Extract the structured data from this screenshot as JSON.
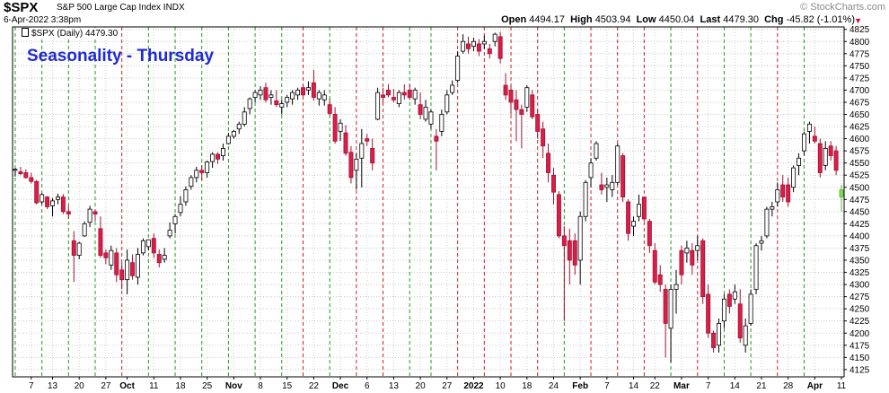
{
  "header": {
    "ticker": "$SPX",
    "ticker_desc": "S&P 500 Large Cap Index  INDX",
    "datetime": "6-Apr-2022 3:38pm",
    "brand": "© StockCharts.com",
    "open_label": "Open",
    "open": "4494.17",
    "high_label": "High",
    "high": "4503.94",
    "low_label": "Low",
    "low": "4450.04",
    "last_label": "Last",
    "last": "4479.30",
    "chg_label": "Chg",
    "chg": "-45.82 (-1.01%)"
  },
  "legend_label": "$SPX (Daily) 4479.30",
  "chart_data": {
    "type": "candlestick",
    "title": "Seasonality - Thursday",
    "ylim": [
      4110,
      4830
    ],
    "y_ticks": [
      4125,
      4150,
      4175,
      4200,
      4225,
      4250,
      4275,
      4300,
      4325,
      4350,
      4375,
      4400,
      4425,
      4450,
      4475,
      4500,
      4525,
      4550,
      4575,
      4600,
      4625,
      4650,
      4675,
      4700,
      4725,
      4750,
      4775,
      4800,
      4825
    ],
    "x_tick_labels": [
      "7",
      "13",
      "20",
      "27",
      "Oct",
      "11",
      "18",
      "25",
      "Nov",
      "8",
      "15",
      "22",
      "Dec",
      "6",
      "13",
      "20",
      "27",
      "2022",
      "10",
      "18",
      "24",
      "Feb",
      "7",
      "14",
      "22",
      "Mar",
      "7",
      "14",
      "21",
      "28",
      "Apr",
      "11"
    ],
    "x_tick_index": [
      3,
      7,
      12,
      17,
      21,
      26,
      31,
      36,
      41,
      46,
      51,
      56,
      61,
      66,
      71,
      76,
      81,
      86,
      91,
      96,
      101,
      106,
      111,
      116,
      120,
      125,
      130,
      135,
      140,
      145,
      150,
      155
    ],
    "bold_tick_labels": [
      "Oct",
      "Nov",
      "Dec",
      "2022",
      "Feb",
      "Mar",
      "Apr"
    ],
    "start_date": "2021-09-03",
    "thursday_lines": [
      {
        "day": 0,
        "color": "green"
      },
      {
        "day": 5,
        "color": "green"
      },
      {
        "day": 10,
        "color": "green"
      },
      {
        "day": 15,
        "color": "green"
      },
      {
        "day": 20,
        "color": "red"
      },
      {
        "day": 25,
        "color": "green"
      },
      {
        "day": 30,
        "color": "green"
      },
      {
        "day": 35,
        "color": "green"
      },
      {
        "day": 40,
        "color": "green"
      },
      {
        "day": 45,
        "color": "green"
      },
      {
        "day": 50,
        "color": "green"
      },
      {
        "day": 54,
        "color": "red"
      },
      {
        "day": 59,
        "color": "green"
      },
      {
        "day": 64,
        "color": "red"
      },
      {
        "day": 69,
        "color": "red"
      },
      {
        "day": 74,
        "color": "green"
      },
      {
        "day": 78,
        "color": "green"
      },
      {
        "day": 83,
        "color": "red"
      },
      {
        "day": 88,
        "color": "red"
      },
      {
        "day": 93,
        "color": "red"
      },
      {
        "day": 98,
        "color": "red"
      },
      {
        "day": 103,
        "color": "green"
      },
      {
        "day": 108,
        "color": "red"
      },
      {
        "day": 113,
        "color": "red"
      },
      {
        "day": 118,
        "color": "red"
      },
      {
        "day": 123,
        "color": "green"
      },
      {
        "day": 128,
        "color": "red"
      },
      {
        "day": 133,
        "color": "green"
      },
      {
        "day": 138,
        "color": "green"
      },
      {
        "day": 143,
        "color": "red"
      },
      {
        "day": 148,
        "color": "green"
      }
    ],
    "candles": [
      [
        4535,
        4540,
        4522,
        4537
      ],
      [
        4532,
        4542,
        4525,
        4528
      ],
      [
        4530,
        4537,
        4518,
        4520
      ],
      [
        4520,
        4530,
        4508,
        4512
      ],
      [
        4512,
        4515,
        4465,
        4468
      ],
      [
        4470,
        4488,
        4465,
        4485
      ],
      [
        4480,
        4482,
        4455,
        4460
      ],
      [
        4462,
        4478,
        4440,
        4472
      ],
      [
        4475,
        4487,
        4465,
        4480
      ],
      [
        4480,
        4486,
        4445,
        4450
      ],
      [
        4450,
        4462,
        4435,
        4445
      ],
      [
        4390,
        4410,
        4305,
        4360
      ],
      [
        4360,
        4388,
        4352,
        4385
      ],
      [
        4400,
        4430,
        4398,
        4425
      ],
      [
        4428,
        4462,
        4418,
        4455
      ],
      [
        4450,
        4455,
        4430,
        4445
      ],
      [
        4415,
        4440,
        4355,
        4360
      ],
      [
        4365,
        4372,
        4342,
        4355
      ],
      [
        4340,
        4380,
        4330,
        4370
      ],
      [
        4365,
        4375,
        4305,
        4320
      ],
      [
        4330,
        4345,
        4290,
        4310
      ],
      [
        4310,
        4372,
        4280,
        4350
      ],
      [
        4345,
        4362,
        4310,
        4318
      ],
      [
        4315,
        4375,
        4300,
        4362
      ],
      [
        4365,
        4395,
        4360,
        4390
      ],
      [
        4378,
        4393,
        4370,
        4392
      ],
      [
        4395,
        4405,
        4355,
        4365
      ],
      [
        4362,
        4372,
        4335,
        4345
      ],
      [
        4352,
        4375,
        4345,
        4360
      ],
      [
        4400,
        4428,
        4395,
        4412
      ],
      [
        4425,
        4445,
        4405,
        4440
      ],
      [
        4448,
        4482,
        4440,
        4465
      ],
      [
        4470,
        4502,
        4462,
        4495
      ],
      [
        4502,
        4525,
        4495,
        4520
      ],
      [
        4520,
        4542,
        4510,
        4535
      ],
      [
        4535,
        4545,
        4515,
        4530
      ],
      [
        4530,
        4555,
        4520,
        4552
      ],
      [
        4553,
        4572,
        4540,
        4568
      ],
      [
        4568,
        4572,
        4548,
        4558
      ],
      [
        4565,
        4590,
        4555,
        4580
      ],
      [
        4590,
        4612,
        4588,
        4605
      ],
      [
        4605,
        4618,
        4600,
        4615
      ],
      [
        4620,
        4635,
        4610,
        4630
      ],
      [
        4630,
        4665,
        4625,
        4655
      ],
      [
        4662,
        4685,
        4650,
        4682
      ],
      [
        4685,
        4700,
        4675,
        4695
      ],
      [
        4690,
        4708,
        4680,
        4700
      ],
      [
        4705,
        4715,
        4675,
        4680
      ],
      [
        4685,
        4700,
        4670,
        4690
      ],
      [
        4678,
        4700,
        4665,
        4670
      ],
      [
        4665,
        4680,
        4650,
        4672
      ],
      [
        4675,
        4690,
        4665,
        4685
      ],
      [
        4682,
        4700,
        4670,
        4695
      ],
      [
        4690,
        4705,
        4680,
        4700
      ],
      [
        4705,
        4712,
        4688,
        4690
      ],
      [
        4700,
        4718,
        4690,
        4705
      ],
      [
        4715,
        4742,
        4678,
        4685
      ],
      [
        4682,
        4700,
        4668,
        4695
      ],
      [
        4680,
        4700,
        4668,
        4690
      ],
      [
        4670,
        4682,
        4648,
        4652
      ],
      [
        4650,
        4665,
        4590,
        4595
      ],
      [
        4615,
        4640,
        4595,
        4632
      ],
      [
        4612,
        4628,
        4565,
        4570
      ],
      [
        4572,
        4585,
        4508,
        4520
      ],
      [
        4535,
        4570,
        4495,
        4558
      ],
      [
        4560,
        4620,
        4500,
        4590
      ],
      [
        4600,
        4610,
        4585,
        4595
      ],
      [
        4580,
        4600,
        4535,
        4550
      ],
      [
        4640,
        4705,
        4638,
        4695
      ],
      [
        4690,
        4705,
        4675,
        4685
      ],
      [
        4700,
        4712,
        4685,
        4690
      ],
      [
        4685,
        4702,
        4675,
        4680
      ],
      [
        4672,
        4700,
        4665,
        4695
      ],
      [
        4695,
        4712,
        4680,
        4690
      ],
      [
        4700,
        4712,
        4680,
        4685
      ],
      [
        4682,
        4705,
        4670,
        4700
      ],
      [
        4670,
        4695,
        4640,
        4650
      ],
      [
        4640,
        4680,
        4635,
        4665
      ],
      [
        4630,
        4660,
        4620,
        4655
      ],
      [
        4605,
        4620,
        4535,
        4595
      ],
      [
        4615,
        4660,
        4605,
        4650
      ],
      [
        4655,
        4700,
        4650,
        4690
      ],
      [
        4695,
        4720,
        4690,
        4710
      ],
      [
        4720,
        4780,
        4715,
        4770
      ],
      [
        4780,
        4815,
        4775,
        4800
      ],
      [
        4795,
        4810,
        4775,
        4785
      ],
      [
        4790,
        4808,
        4780,
        4800
      ],
      [
        4795,
        4805,
        4770,
        4780
      ],
      [
        4795,
        4812,
        4785,
        4800
      ],
      [
        4785,
        4795,
        4765,
        4775
      ],
      [
        4800,
        4818,
        4790,
        4815
      ],
      [
        4810,
        4820,
        4755,
        4765
      ],
      [
        4710,
        4735,
        4680,
        4690
      ],
      [
        4700,
        4712,
        4650,
        4675
      ],
      [
        4680,
        4700,
        4595,
        4660
      ],
      [
        4660,
        4670,
        4580,
        4650
      ],
      [
        4665,
        4710,
        4655,
        4705
      ],
      [
        4690,
        4700,
        4640,
        4645
      ],
      [
        4650,
        4660,
        4600,
        4615
      ],
      [
        4620,
        4635,
        4560,
        4585
      ],
      [
        4570,
        4590,
        4510,
        4530
      ],
      [
        4525,
        4540,
        4465,
        4490
      ],
      [
        4485,
        4492,
        4395,
        4400
      ],
      [
        4400,
        4420,
        4225,
        4380
      ],
      [
        4390,
        4415,
        4300,
        4350
      ],
      [
        4390,
        4405,
        4320,
        4340
      ],
      [
        4350,
        4450,
        4300,
        4440
      ],
      [
        4440,
        4515,
        4430,
        4510
      ],
      [
        4520,
        4560,
        4500,
        4550
      ],
      [
        4560,
        4595,
        4555,
        4590
      ],
      [
        4505,
        4530,
        4485,
        4495
      ],
      [
        4500,
        4520,
        4470,
        4505
      ],
      [
        4495,
        4525,
        4480,
        4510
      ],
      [
        4510,
        4590,
        4505,
        4585
      ],
      [
        4565,
        4570,
        4470,
        4480
      ],
      [
        4470,
        4475,
        4390,
        4405
      ],
      [
        4420,
        4440,
        4400,
        4430
      ],
      [
        4440,
        4485,
        4430,
        4465
      ],
      [
        4480,
        4480,
        4430,
        4435
      ],
      [
        4430,
        4435,
        4365,
        4380
      ],
      [
        4370,
        4385,
        4300,
        4305
      ],
      [
        4320,
        4340,
        4285,
        4300
      ],
      [
        4290,
        4300,
        4150,
        4220
      ],
      [
        4210,
        4300,
        4140,
        4290
      ],
      [
        4290,
        4330,
        4240,
        4300
      ],
      [
        4370,
        4380,
        4300,
        4320
      ],
      [
        4365,
        4390,
        4345,
        4375
      ],
      [
        4370,
        4385,
        4320,
        4340
      ],
      [
        4370,
        4400,
        4350,
        4380
      ],
      [
        4390,
        4395,
        4260,
        4275
      ],
      [
        4280,
        4300,
        4190,
        4200
      ],
      [
        4200,
        4205,
        4160,
        4170
      ],
      [
        4175,
        4230,
        4160,
        4220
      ],
      [
        4225,
        4280,
        4210,
        4270
      ],
      [
        4280,
        4290,
        4240,
        4255
      ],
      [
        4270,
        4300,
        4260,
        4285
      ],
      [
        4260,
        4290,
        4180,
        4190
      ],
      [
        4175,
        4230,
        4160,
        4215
      ],
      [
        4220,
        4290,
        4215,
        4280
      ],
      [
        4290,
        4385,
        4280,
        4380
      ],
      [
        4385,
        4400,
        4370,
        4390
      ],
      [
        4400,
        4460,
        4395,
        4455
      ],
      [
        4455,
        4470,
        4440,
        4460
      ],
      [
        4470,
        4510,
        4460,
        4495
      ],
      [
        4505,
        4525,
        4470,
        4480
      ],
      [
        4505,
        4520,
        4460,
        4470
      ],
      [
        4500,
        4545,
        4490,
        4540
      ],
      [
        4545,
        4570,
        4525,
        4560
      ],
      [
        4575,
        4615,
        4565,
        4610
      ],
      [
        4615,
        4635,
        4590,
        4630
      ],
      [
        4605,
        4625,
        4590,
        4595
      ],
      [
        4590,
        4600,
        4520,
        4530
      ],
      [
        4545,
        4595,
        4535,
        4580
      ],
      [
        4585,
        4595,
        4555,
        4565
      ],
      [
        4575,
        4585,
        4525,
        4535
      ],
      [
        4495,
        4505,
        4450,
        4480
      ]
    ],
    "last_candle_color": "#7ed957"
  }
}
